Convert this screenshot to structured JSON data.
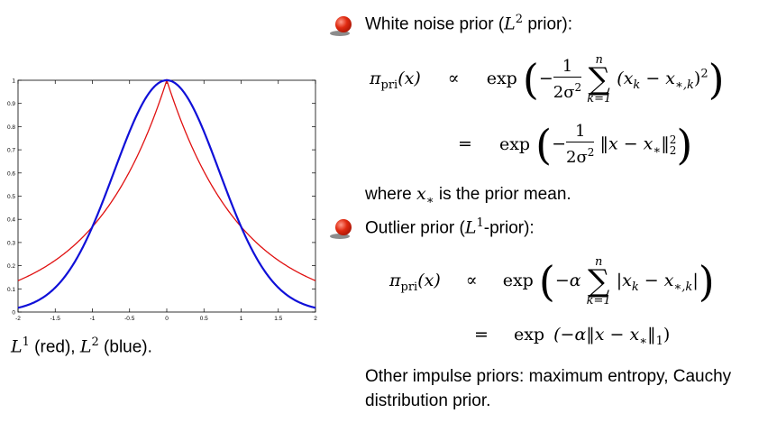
{
  "chart_data": {
    "type": "line",
    "x": [
      -2,
      2
    ],
    "xlim": [
      -2,
      2
    ],
    "ylim": [
      0,
      1
    ],
    "xticks": [
      "-2",
      "-1.5",
      "-1",
      "-0.5",
      "0",
      "0.5",
      "1",
      "1.5",
      "2"
    ],
    "yticks": [
      "0",
      "0.1",
      "0.2",
      "0.3",
      "0.4",
      "0.5",
      "0.6",
      "0.7",
      "0.8",
      "0.9",
      "1"
    ],
    "series": [
      {
        "formula": "exp(-|x|)",
        "color": "#e01010"
      },
      {
        "formula": "exp(-x^2)",
        "color": "#1010d8"
      }
    ]
  },
  "caption": {
    "l1": "L",
    "l1_sup": "1",
    "red": " (red), ",
    "l2": "L",
    "l2_sup": "2",
    "blue": " (blue)."
  },
  "bullet1": {
    "text": "White noise prior (",
    "math": "L",
    "sup": "2",
    "tail": " prior):"
  },
  "eq1": {
    "lhs": "π",
    "lhs_sub": "pri",
    "lhs_arg": "(x)",
    "rel1": "∝",
    "exp": "exp",
    "frac_num": "1",
    "frac_den": "2σ",
    "frac_den_sup": "2",
    "sum_top": "n",
    "sum_bot": "k=1",
    "term1": "(x",
    "term1_sub": "k",
    "term1_mid": " − x",
    "term1_sub2": "∗,k",
    "term1_end": ")",
    "term1_sup": "2",
    "rel2": "=",
    "term2": "‖x − x",
    "term2_sub": "∗",
    "term2_end": "‖",
    "term2_sup": "2",
    "term2_subn": "2"
  },
  "where_line": {
    "pre": "where ",
    "math": "x",
    "sub": "∗",
    "post": " is the prior mean."
  },
  "bullet2": {
    "text": "Outlier prior (",
    "math": "L",
    "sup": "1",
    "tail": "-prior):"
  },
  "eq2": {
    "lhs": "π",
    "lhs_sub": "pri",
    "lhs_arg": "(x)",
    "rel1": "∝",
    "exp": "exp",
    "alpha": "−α",
    "sum_top": "n",
    "sum_bot": "k=1",
    "term1": "|x",
    "term1_sub": "k",
    "term1_mid": " − x",
    "term1_sub2": "∗,k",
    "term1_end": "|",
    "rel2": "=",
    "term2": "(−α‖x − x",
    "term2_sub": "∗",
    "term2_end": "‖",
    "term2_subn": "1",
    "term2_close": ")"
  },
  "other": {
    "line1": "Other impulse priors: maximum entropy, Cauchy",
    "line2": "distribution prior."
  }
}
